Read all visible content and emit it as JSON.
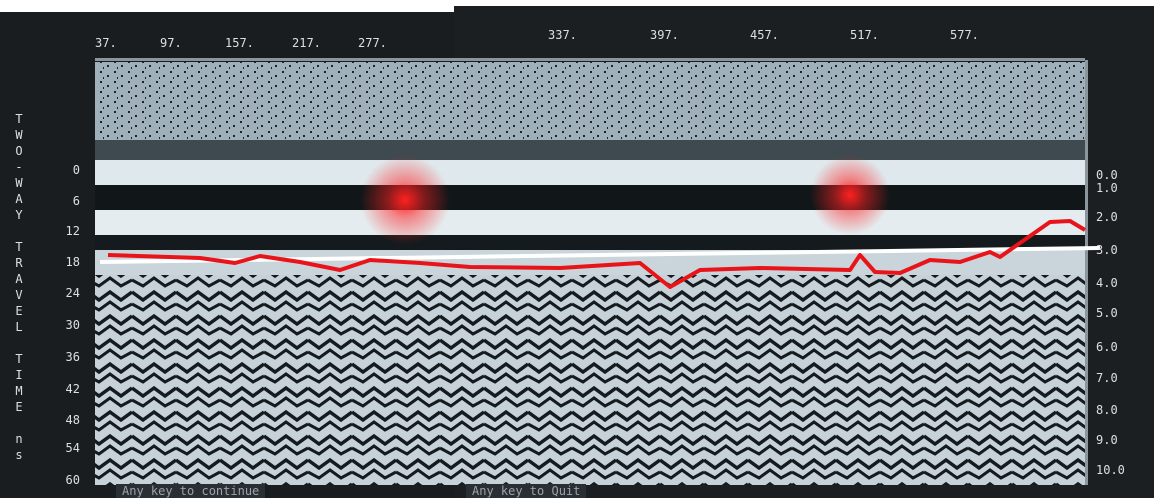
{
  "top_axis": [
    "37.",
    "97.",
    "157.",
    "217.",
    "277.",
    "337.",
    "397.",
    "457.",
    "517.",
    "577."
  ],
  "left_axis": {
    "title": "TWO-WAY TRAVEL TIME ns",
    "labels": [
      "0",
      "6",
      "12",
      "18",
      "24",
      "30",
      "36",
      "42",
      "48",
      "54",
      "60"
    ]
  },
  "right_axis": [
    "0.0",
    "1.0",
    "2.0",
    "3.0",
    "4.0",
    "5.0",
    "6.0",
    "7.0",
    "8.0",
    "9.0",
    "10.0"
  ],
  "footer": {
    "left": "Any key to continue",
    "right": "Any key to Quit"
  }
}
